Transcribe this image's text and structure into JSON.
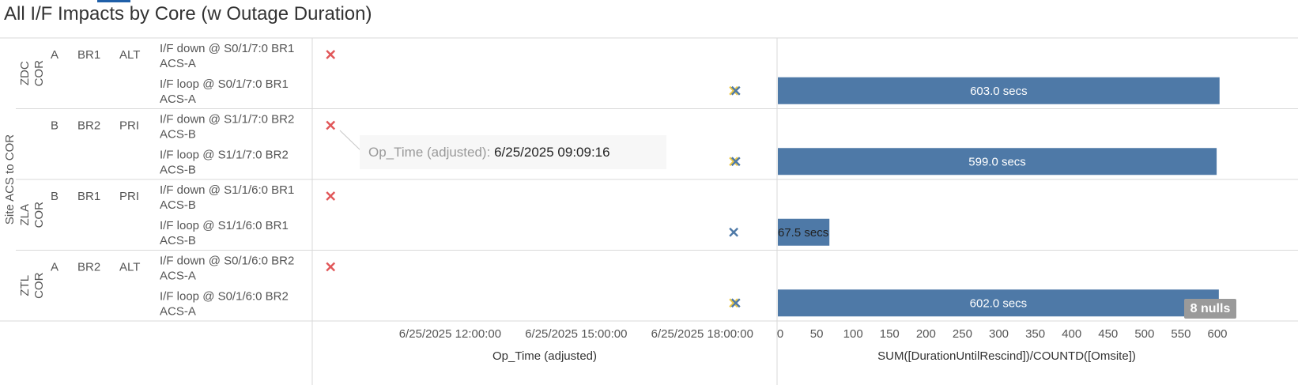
{
  "title": "All I/F Impacts by Core (w Outage Duration)",
  "colors": {
    "bar": "#4e79a7",
    "mark_down": "#e15759",
    "mark_yellow": "#edc948",
    "mark_blue": "#4e79a7",
    "grid": "#d9d9d9"
  },
  "outer_dimension_label": "Site ACS to COR",
  "groups": [
    {
      "label": "ZDC COR",
      "rows": [
        {
          "col1": "A",
          "col2": "BR1",
          "col3": "ALT",
          "event_line1": "I/F down @ S0/1/7:0 BR1",
          "event_line2": "ACS-A",
          "marks": [
            "red"
          ],
          "duration": null
        },
        {
          "col1": "",
          "col2": "",
          "col3": "",
          "event_line1": "I/F loop @ S0/1/7:0 BR1",
          "event_line2": "ACS-A",
          "marks": [
            "yellow",
            "blue"
          ],
          "duration": 603.0,
          "duration_label": "603.0 secs"
        }
      ]
    },
    {
      "label": "",
      "rows": [
        {
          "col1": "B",
          "col2": "BR2",
          "col3": "PRI",
          "event_line1": "I/F down @ S1/1/7:0 BR2",
          "event_line2": "ACS-B",
          "marks": [
            "red"
          ],
          "duration": null
        },
        {
          "col1": "",
          "col2": "",
          "col3": "",
          "event_line1": "I/F loop @ S1/1/7:0 BR2",
          "event_line2": "ACS-B",
          "marks": [
            "yellow",
            "blue"
          ],
          "duration": 599.0,
          "duration_label": "599.0 secs"
        }
      ]
    },
    {
      "label": "ZLA COR",
      "rows": [
        {
          "col1": "B",
          "col2": "BR1",
          "col3": "PRI",
          "event_line1": "I/F down @ S1/1/6:0 BR1",
          "event_line2": "ACS-B",
          "marks": [
            "red"
          ],
          "duration": null
        },
        {
          "col1": "",
          "col2": "",
          "col3": "",
          "event_line1": "I/F loop @ S1/1/6:0 BR1",
          "event_line2": "ACS-B",
          "marks": [
            "blue"
          ],
          "duration": 67.5,
          "duration_label": "67.5 secs"
        }
      ]
    },
    {
      "label": "ZTL COR",
      "rows": [
        {
          "col1": "A",
          "col2": "BR2",
          "col3": "ALT",
          "event_line1": "I/F down @ S0/1/6:0 BR2",
          "event_line2": "ACS-A",
          "marks": [
            "red"
          ],
          "duration": null
        },
        {
          "col1": "",
          "col2": "",
          "col3": "",
          "event_line1": "I/F loop @ S0/1/6:0 BR2",
          "event_line2": "ACS-A",
          "marks": [
            "yellow",
            "blue"
          ],
          "duration": 602.0,
          "duration_label": "602.0 secs"
        }
      ]
    }
  ],
  "chart_data": [
    {
      "type": "scatter",
      "xlabel": "Op_Time (adjusted)",
      "x_tick_labels": [
        "6/25/2025 12:00:00",
        "6/25/2025 15:00:00",
        "6/25/2025 18:00:00"
      ],
      "xlim": [
        "6/25/2025 09:00:00",
        "6/25/2025 19:30:00"
      ],
      "series": [
        {
          "color": "red",
          "x": [
            "6/25/2025 09:09:16",
            "6/25/2025 09:09:16",
            "6/25/2025 09:09:16",
            "6/25/2025 09:09:16"
          ],
          "y": [
            "I/F down @ S0/1/7:0 BR1 ACS-A",
            "I/F down @ S1/1/7:0 BR2 ACS-B",
            "I/F down @ S1/1/6:0 BR1 ACS-B",
            "I/F down @ S0/1/6:0 BR2 ACS-A"
          ]
        },
        {
          "color": "yellow",
          "x": [
            "6/25/2025 18:45:00",
            "6/25/2025 18:45:00",
            "6/25/2025 18:45:00"
          ],
          "y": [
            "I/F loop @ S0/1/7:0 BR1 ACS-A",
            "I/F loop @ S1/1/7:0 BR2 ACS-B",
            "I/F loop @ S0/1/6:0 BR2 ACS-A"
          ]
        },
        {
          "color": "blue",
          "x": [
            "6/25/2025 18:48:00",
            "6/25/2025 18:48:00",
            "6/25/2025 18:45:00",
            "6/25/2025 18:48:00"
          ],
          "y": [
            "I/F loop @ S0/1/7:0 BR1 ACS-A",
            "I/F loop @ S1/1/7:0 BR2 ACS-B",
            "I/F loop @ S1/1/6:0 BR1 ACS-B",
            "I/F loop @ S0/1/6:0 BR2 ACS-A"
          ]
        }
      ],
      "tooltip": {
        "field": "Op_Time (adjusted):",
        "value": "6/25/2025 09:09:16"
      }
    },
    {
      "type": "bar",
      "orientation": "horizontal",
      "xlabel": "SUM([DurationUntilRescind])/COUNTD([Omsite])",
      "xlim": [
        0,
        600
      ],
      "x_ticks": [
        0,
        50,
        100,
        150,
        200,
        250,
        300,
        350,
        400,
        450,
        500,
        550,
        600
      ],
      "categories": [
        "I/F loop @ S0/1/7:0 BR1 ACS-A",
        "I/F loop @ S1/1/7:0 BR2 ACS-B",
        "I/F loop @ S1/1/6:0 BR1 ACS-B",
        "I/F loop @ S0/1/6:0 BR2 ACS-A"
      ],
      "values": [
        603.0,
        599.0,
        67.5,
        602.0
      ],
      "data_labels": [
        "603.0 secs",
        "599.0 secs",
        "67.5 secs",
        "602.0 secs"
      ],
      "nulls_label": "8 nulls"
    }
  ]
}
